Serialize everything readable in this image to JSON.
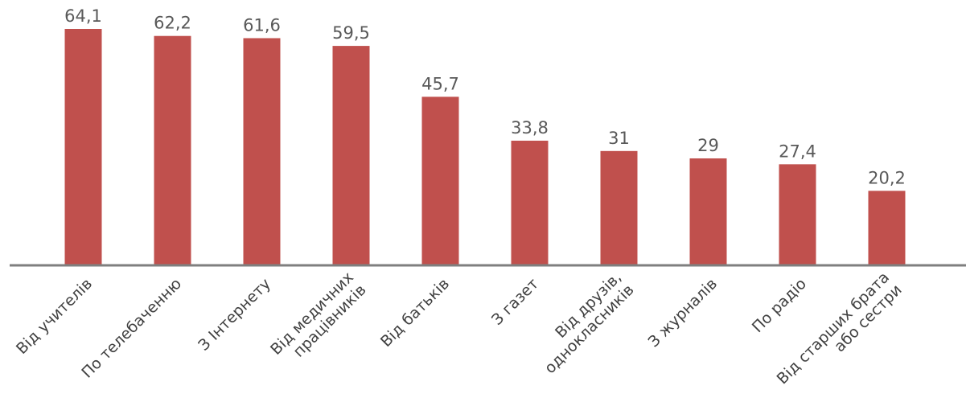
{
  "chart_data": {
    "type": "bar",
    "categories": [
      [
        "Від учителів"
      ],
      [
        "По телебаченню"
      ],
      [
        "З Інтернету"
      ],
      [
        "Від медичних",
        "працівників"
      ],
      [
        "Від батьків"
      ],
      [
        "З газет"
      ],
      [
        "Від друзів,",
        "однокласників"
      ],
      [
        "З журналів"
      ],
      [
        "По радіо"
      ],
      [
        "Від старших брата",
        "або сестри"
      ]
    ],
    "values": [
      64.1,
      62.2,
      61.6,
      59.5,
      45.7,
      33.8,
      31,
      29,
      27.4,
      20.2
    ],
    "value_labels": [
      "64,1",
      "62,2",
      "61,6",
      "59,5",
      "45,7",
      "33,8",
      "31",
      "29",
      "27,4",
      "20,2"
    ],
    "title": "",
    "xlabel": "",
    "ylabel": "",
    "ylim": [
      0,
      64.1
    ],
    "grid": false,
    "legend": "none",
    "colors": {
      "bar": "#c0504d",
      "axis": "#7f7f7f",
      "value_text": "#595959",
      "category_text": "#404040"
    }
  }
}
